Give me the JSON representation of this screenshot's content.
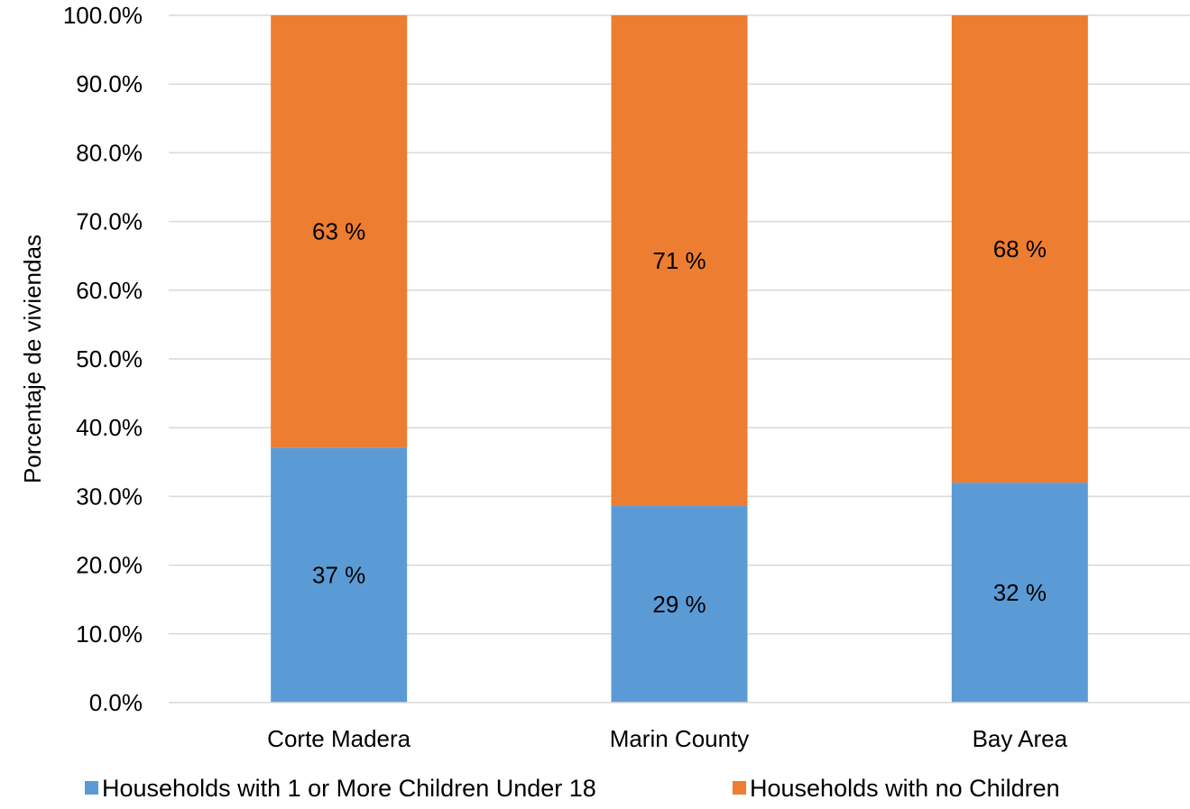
{
  "chart_data": {
    "type": "bar",
    "stacked": true,
    "title": "",
    "xlabel": "",
    "ylabel": "Porcentaje de viviendas",
    "ylim": [
      0,
      100
    ],
    "yticks": [
      "0.0%",
      "10.0%",
      "20.0%",
      "30.0%",
      "40.0%",
      "50.0%",
      "60.0%",
      "70.0%",
      "80.0%",
      "90.0%",
      "100.0%"
    ],
    "categories": [
      "Corte Madera",
      "Marin County",
      "Bay Area"
    ],
    "series": [
      {
        "name": "Households with 1 or More Children Under 18",
        "values": [
          37.1,
          28.6,
          32.0
        ],
        "labels": [
          "37 %",
          "29 %",
          "32 %"
        ],
        "color": "#5B9BD5"
      },
      {
        "name": "Households with no Children",
        "values": [
          62.9,
          71.4,
          68.0
        ],
        "labels": [
          "63 %",
          "71 %",
          "68 %"
        ],
        "color": "#ED7D31"
      }
    ],
    "grid": true,
    "legend": "bottom"
  }
}
